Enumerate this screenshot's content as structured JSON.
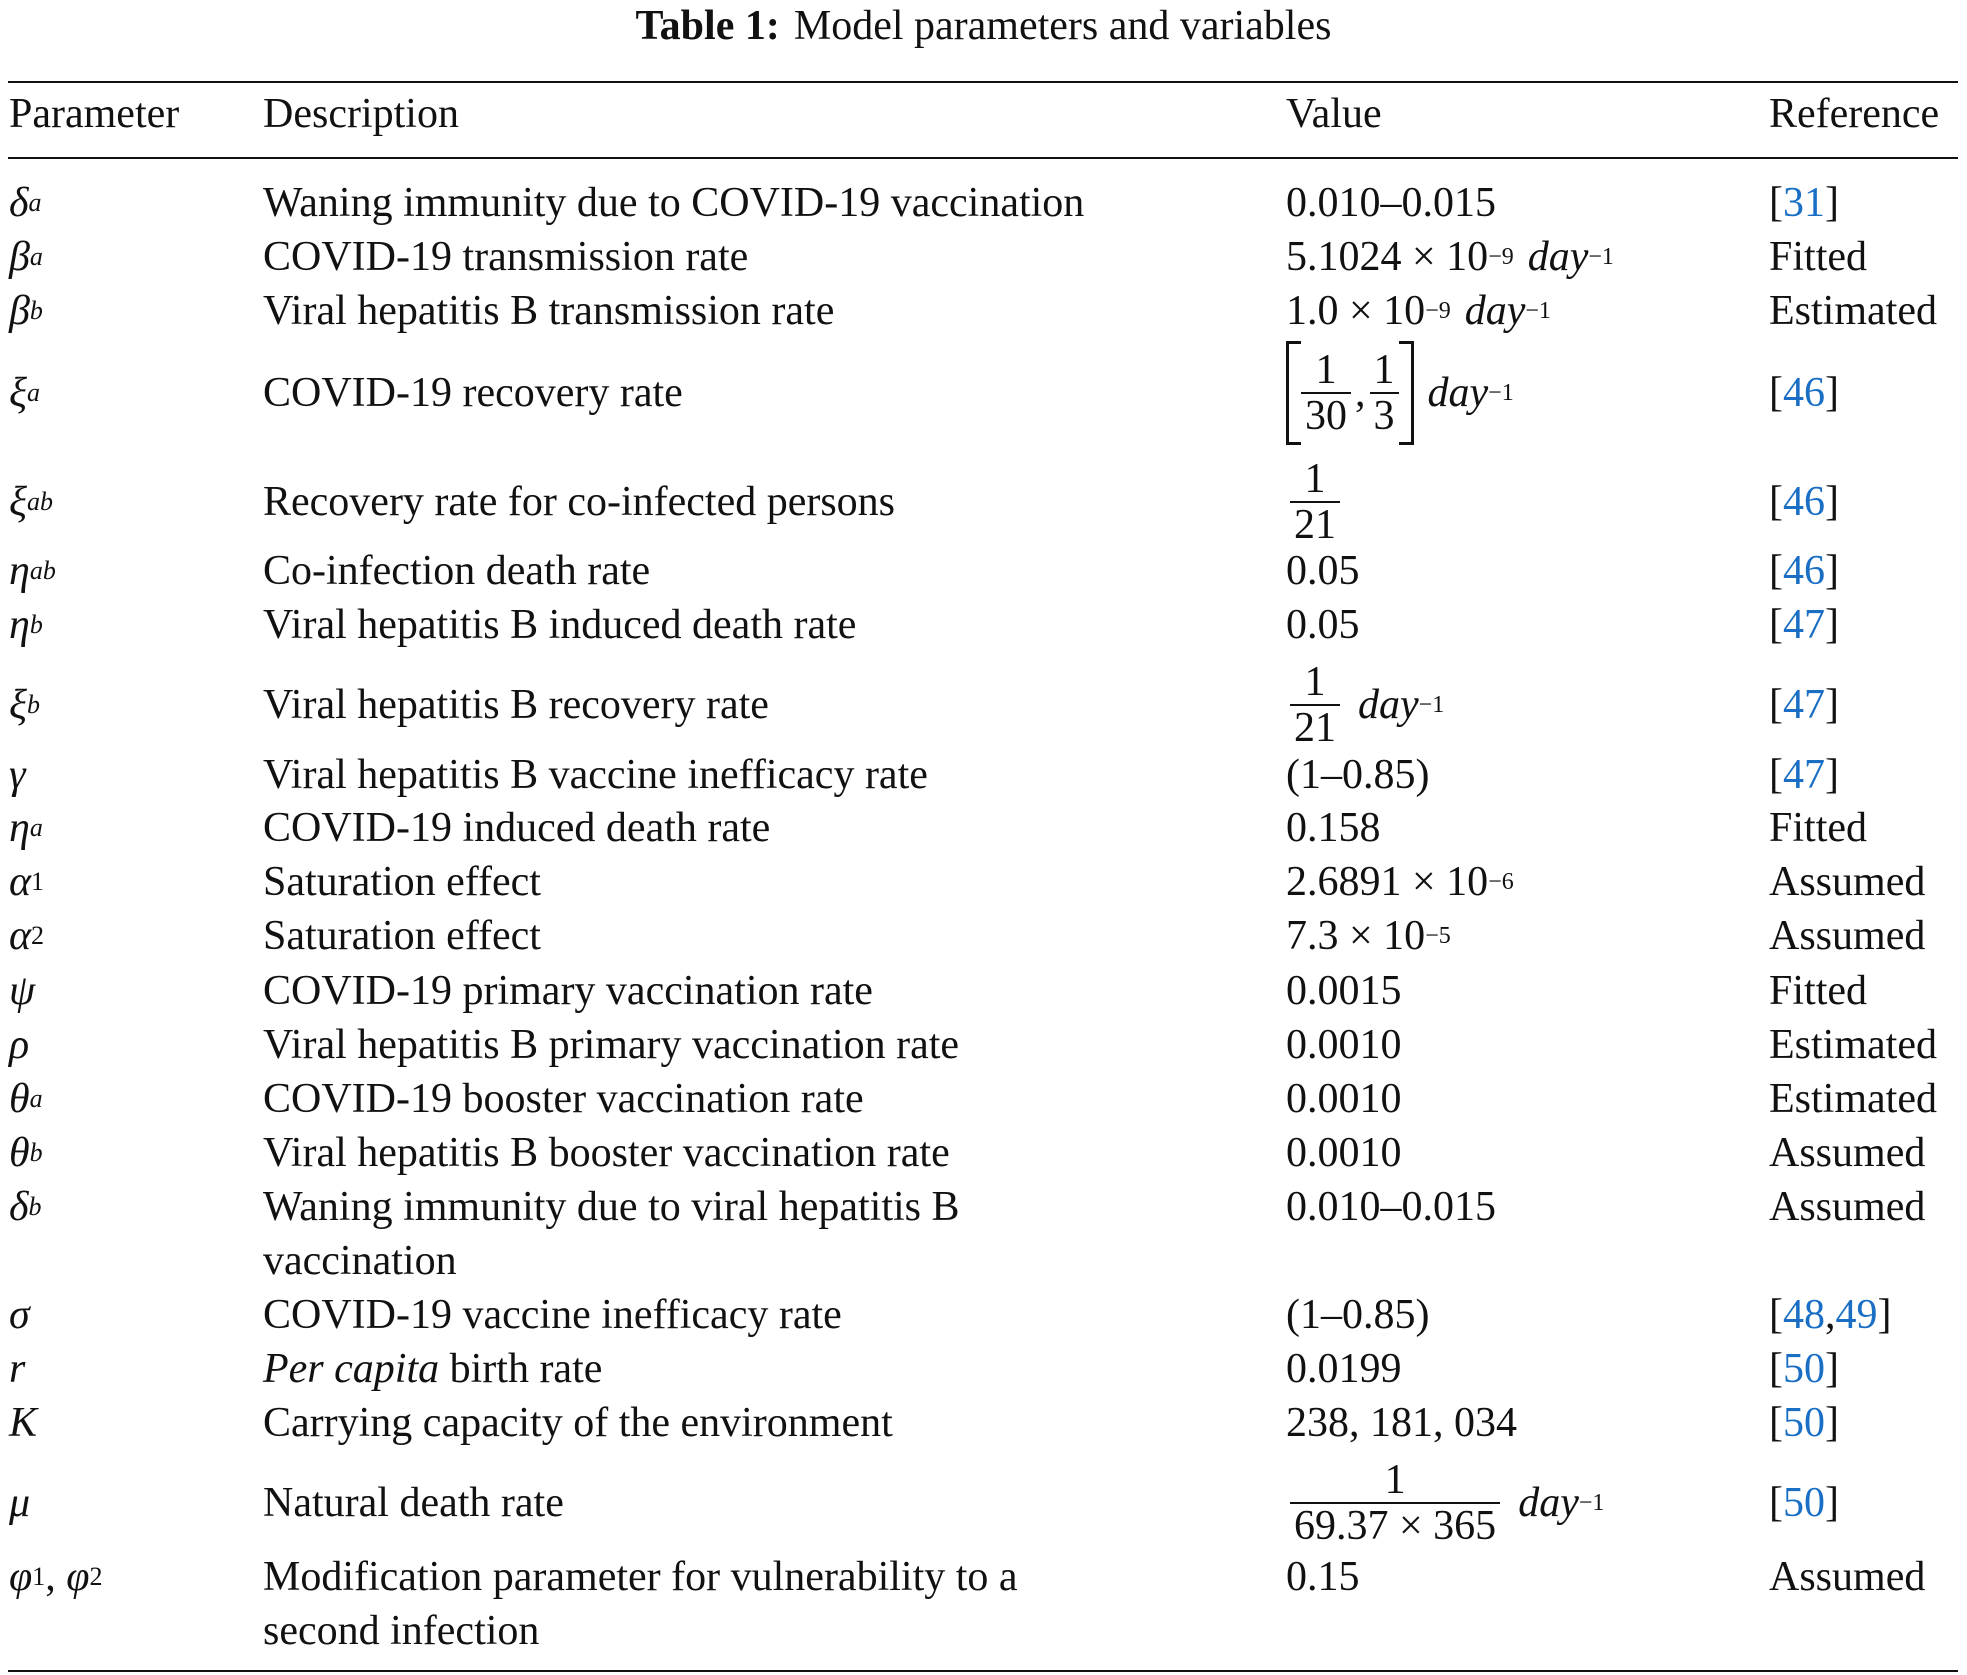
{
  "title": {
    "label": "Table 1:",
    "text": "Model parameters and variables"
  },
  "headers": [
    "Parameter",
    "Description",
    "Value",
    "Reference"
  ],
  "rows": [
    {
      "param": [
        {
          "sym": "δ",
          "sub": "a"
        }
      ],
      "desc": [
        "Waning immunity due to COVID-19 vaccination"
      ],
      "value": {
        "text": "0.010–0.015"
      },
      "ref": {
        "links": [
          "31"
        ]
      }
    },
    {
      "param": [
        {
          "sym": "β",
          "sub": "a"
        }
      ],
      "desc": [
        "COVID-19 transmission rate"
      ],
      "value": {
        "text": "5.1024 × 10",
        "exp": "−9",
        "unit": "day",
        "unit_exp": "−1"
      },
      "ref": {
        "text": "Fitted"
      }
    },
    {
      "param": [
        {
          "sym": "β",
          "sub": "b"
        }
      ],
      "desc": [
        "Viral hepatitis B transmission rate"
      ],
      "value": {
        "text": "1.0 × 10",
        "exp": "−9",
        "unit": "day",
        "unit_exp": "−1"
      },
      "ref": {
        "text": "Estimated"
      }
    },
    {
      "param": [
        {
          "sym": "ξ",
          "sub": "a"
        }
      ],
      "desc": [
        "COVID-19 recovery rate"
      ],
      "value": {
        "bracket": true,
        "fracs": [
          [
            "1",
            "30"
          ],
          [
            "1",
            "3"
          ]
        ],
        "unit": "day",
        "unit_exp": "−1"
      },
      "ref": {
        "links": [
          "46"
        ]
      }
    },
    {
      "param": [
        {
          "sym": "ξ",
          "sub": "ab"
        }
      ],
      "desc": [
        "Recovery rate for co-infected persons"
      ],
      "value": {
        "fracs": [
          [
            "1",
            "21"
          ]
        ]
      },
      "ref": {
        "links": [
          "46"
        ]
      }
    },
    {
      "param": [
        {
          "sym": "η",
          "sub": "ab"
        }
      ],
      "desc": [
        "Co-infection death rate"
      ],
      "value": {
        "text": "0.05"
      },
      "ref": {
        "links": [
          "46"
        ]
      }
    },
    {
      "param": [
        {
          "sym": "η",
          "sub": "b"
        }
      ],
      "desc": [
        "Viral hepatitis B induced death rate"
      ],
      "value": {
        "text": "0.05"
      },
      "ref": {
        "links": [
          "47"
        ]
      }
    },
    {
      "param": [
        {
          "sym": "ξ",
          "sub": "b"
        }
      ],
      "desc": [
        "Viral hepatitis B recovery rate"
      ],
      "value": {
        "fracs": [
          [
            "1",
            "21"
          ]
        ],
        "unit": "day",
        "unit_exp": "−1"
      },
      "ref": {
        "links": [
          "47"
        ]
      }
    },
    {
      "param": [
        {
          "sym": "γ"
        }
      ],
      "desc": [
        "Viral hepatitis B vaccine inefficacy rate"
      ],
      "value": {
        "text": "(1–0.85)"
      },
      "ref": {
        "links": [
          "47"
        ]
      }
    },
    {
      "param": [
        {
          "sym": "η",
          "sub": "a"
        }
      ],
      "desc": [
        "COVID-19 induced death rate"
      ],
      "value": {
        "text": "0.158"
      },
      "ref": {
        "text": "Fitted"
      }
    },
    {
      "param": [
        {
          "sym": "α",
          "sub": "1"
        }
      ],
      "desc": [
        "Saturation effect"
      ],
      "value": {
        "text": "2.6891 × 10",
        "exp": "−6"
      },
      "ref": {
        "text": "Assumed"
      }
    },
    {
      "param": [
        {
          "sym": "α",
          "sub": "2"
        }
      ],
      "desc": [
        "Saturation effect"
      ],
      "value": {
        "text": "7.3 × 10",
        "exp": "−5"
      },
      "ref": {
        "text": "Assumed"
      }
    },
    {
      "param": [
        {
          "sym": "ψ"
        }
      ],
      "desc": [
        "COVID-19 primary vaccination rate"
      ],
      "value": {
        "text": "0.0015"
      },
      "ref": {
        "text": "Fitted"
      }
    },
    {
      "param": [
        {
          "sym": "ρ"
        }
      ],
      "desc": [
        "Viral hepatitis B primary vaccination rate"
      ],
      "value": {
        "text": "0.0010"
      },
      "ref": {
        "text": "Estimated"
      }
    },
    {
      "param": [
        {
          "sym": "θ",
          "sub": "a"
        }
      ],
      "desc": [
        "COVID-19 booster vaccination rate"
      ],
      "value": {
        "text": "0.0010"
      },
      "ref": {
        "text": "Estimated"
      }
    },
    {
      "param": [
        {
          "sym": "θ",
          "sub": "b"
        }
      ],
      "desc": [
        "Viral hepatitis B booster vaccination rate"
      ],
      "value": {
        "text": "0.0010"
      },
      "ref": {
        "text": "Assumed"
      }
    },
    {
      "param": [
        {
          "sym": "δ",
          "sub": "b"
        }
      ],
      "desc": [
        "Waning immunity due to viral hepatitis B",
        "vaccination"
      ],
      "value": {
        "text": "0.010–0.015"
      },
      "ref": {
        "text": "Assumed"
      }
    },
    {
      "param": [
        {
          "sym": "σ"
        }
      ],
      "desc": [
        "COVID-19 vaccine inefficacy rate"
      ],
      "value": {
        "text": "(1–0.85)"
      },
      "ref": {
        "links": [
          "48",
          "49"
        ]
      }
    },
    {
      "param": [
        {
          "sym": "r"
        }
      ],
      "desc_italic": "Per capita",
      "desc": [
        " birth rate"
      ],
      "value": {
        "text": "0.0199"
      },
      "ref": {
        "links": [
          "50"
        ]
      }
    },
    {
      "param": [
        {
          "sym": "K"
        }
      ],
      "desc": [
        "Carrying capacity of the environment"
      ],
      "value": {
        "text": "238, 181, 034"
      },
      "ref": {
        "links": [
          "50"
        ]
      }
    },
    {
      "param": [
        {
          "sym": "μ"
        }
      ],
      "desc": [
        "Natural death rate"
      ],
      "value": {
        "fracs": [
          [
            "1",
            "69.37 × 365"
          ]
        ],
        "unit": "day",
        "unit_exp": "−1"
      },
      "ref": {
        "links": [
          "50"
        ]
      }
    },
    {
      "param": [
        {
          "sym": "φ",
          "sub": "1"
        },
        {
          "sym": "φ",
          "sub": "2"
        }
      ],
      "desc": [
        "Modification parameter for vulnerability to a",
        "second infection"
      ],
      "value": {
        "text": "0.15"
      },
      "ref": {
        "text": "Assumed"
      }
    }
  ],
  "colors": {
    "link": "#1a6fc4",
    "text": "#111111"
  }
}
